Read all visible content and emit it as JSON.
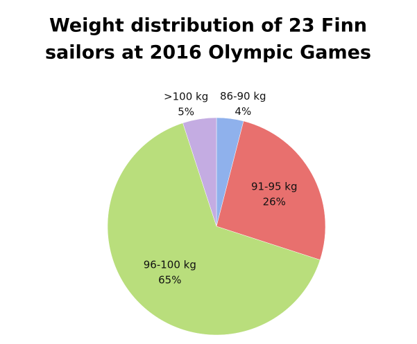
{
  "chart_data": {
    "type": "pie",
    "title": [
      "Weight distribution of 23 Finn",
      "sailors at 2016 Olympic Games"
    ],
    "categories": [
      "86-90 kg",
      "91-95 kg",
      "96-100 kg",
      ">100 kg"
    ],
    "values": [
      4,
      26,
      65,
      5
    ],
    "value_labels": [
      "4%",
      "26%",
      "65%",
      "5%"
    ],
    "colors": [
      "#8fb1ec",
      "#e8706e",
      "#b9de7c",
      "#c4ace2"
    ]
  }
}
